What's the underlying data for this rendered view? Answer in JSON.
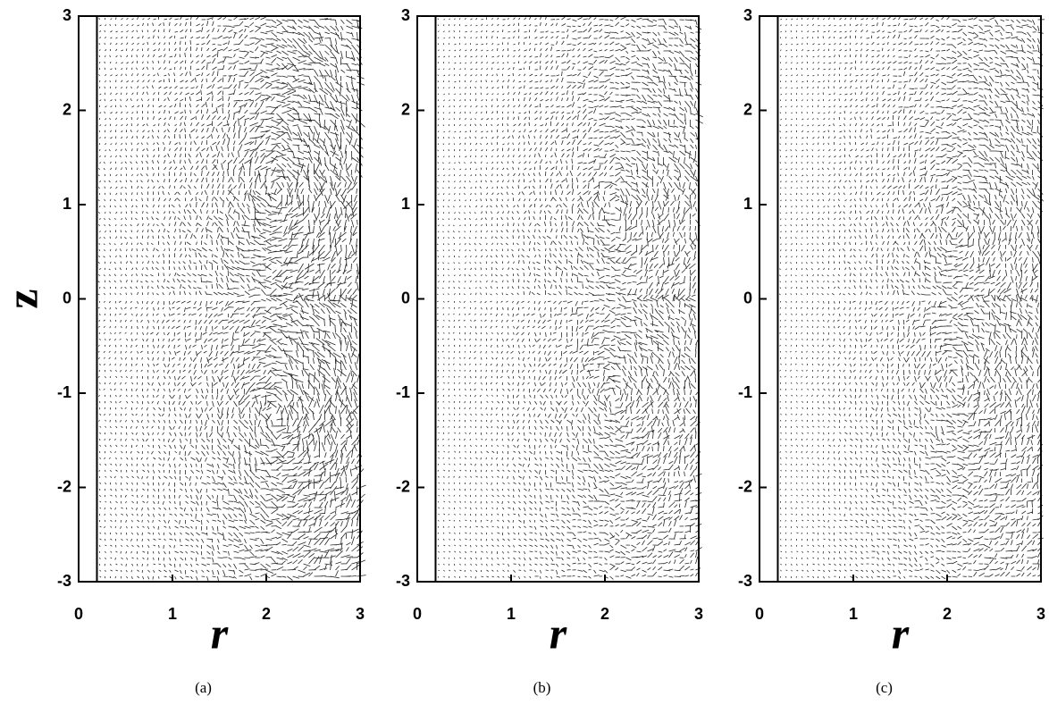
{
  "chart_data": [
    {
      "type": "quiver",
      "caption": "(a)",
      "xlabel": "r",
      "ylabel": "z",
      "xlim": [
        0,
        3
      ],
      "ylim": [
        -3,
        3
      ],
      "xticks": [
        0,
        1,
        2,
        3
      ],
      "yticks": [
        -3,
        -2,
        -1,
        0,
        1,
        2,
        3
      ]
    },
    {
      "type": "quiver",
      "caption": "(b)",
      "xlabel": "r",
      "xlim": [
        0,
        3
      ],
      "ylim": [
        -3,
        3
      ],
      "xticks": [
        0,
        1,
        2,
        3
      ],
      "yticks": [
        -3,
        -2,
        -1,
        0,
        1,
        2,
        3
      ]
    },
    {
      "type": "quiver",
      "caption": "(c)",
      "xlabel": "r",
      "xlim": [
        0,
        3
      ],
      "ylim": [
        -3,
        3
      ],
      "xticks": [
        0,
        1,
        2,
        3
      ],
      "yticks": [
        -3,
        -2,
        -1,
        0,
        1,
        2,
        3
      ]
    }
  ]
}
